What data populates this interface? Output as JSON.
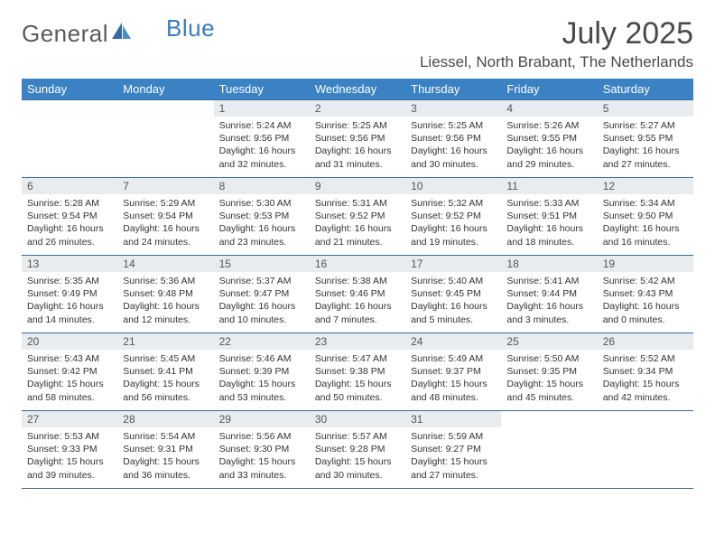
{
  "logo": {
    "part1": "General",
    "part2": "Blue"
  },
  "title": "July 2025",
  "location": "Liessel, North Brabant, The Netherlands",
  "colors": {
    "header_bg": "#3b82c4",
    "header_fg": "#ffffff",
    "daynum_bg": "#e8ecef",
    "rule": "#3b6a9a",
    "logo_gray": "#5a5a5a",
    "logo_blue": "#3b7bbf"
  },
  "weekdays": [
    "Sunday",
    "Monday",
    "Tuesday",
    "Wednesday",
    "Thursday",
    "Friday",
    "Saturday"
  ],
  "weeks": [
    [
      {
        "n": "",
        "sunrise": "",
        "sunset": "",
        "daylight": ""
      },
      {
        "n": "",
        "sunrise": "",
        "sunset": "",
        "daylight": ""
      },
      {
        "n": "1",
        "sunrise": "5:24 AM",
        "sunset": "9:56 PM",
        "daylight": "16 hours and 32 minutes."
      },
      {
        "n": "2",
        "sunrise": "5:25 AM",
        "sunset": "9:56 PM",
        "daylight": "16 hours and 31 minutes."
      },
      {
        "n": "3",
        "sunrise": "5:25 AM",
        "sunset": "9:56 PM",
        "daylight": "16 hours and 30 minutes."
      },
      {
        "n": "4",
        "sunrise": "5:26 AM",
        "sunset": "9:55 PM",
        "daylight": "16 hours and 29 minutes."
      },
      {
        "n": "5",
        "sunrise": "5:27 AM",
        "sunset": "9:55 PM",
        "daylight": "16 hours and 27 minutes."
      }
    ],
    [
      {
        "n": "6",
        "sunrise": "5:28 AM",
        "sunset": "9:54 PM",
        "daylight": "16 hours and 26 minutes."
      },
      {
        "n": "7",
        "sunrise": "5:29 AM",
        "sunset": "9:54 PM",
        "daylight": "16 hours and 24 minutes."
      },
      {
        "n": "8",
        "sunrise": "5:30 AM",
        "sunset": "9:53 PM",
        "daylight": "16 hours and 23 minutes."
      },
      {
        "n": "9",
        "sunrise": "5:31 AM",
        "sunset": "9:52 PM",
        "daylight": "16 hours and 21 minutes."
      },
      {
        "n": "10",
        "sunrise": "5:32 AM",
        "sunset": "9:52 PM",
        "daylight": "16 hours and 19 minutes."
      },
      {
        "n": "11",
        "sunrise": "5:33 AM",
        "sunset": "9:51 PM",
        "daylight": "16 hours and 18 minutes."
      },
      {
        "n": "12",
        "sunrise": "5:34 AM",
        "sunset": "9:50 PM",
        "daylight": "16 hours and 16 minutes."
      }
    ],
    [
      {
        "n": "13",
        "sunrise": "5:35 AM",
        "sunset": "9:49 PM",
        "daylight": "16 hours and 14 minutes."
      },
      {
        "n": "14",
        "sunrise": "5:36 AM",
        "sunset": "9:48 PM",
        "daylight": "16 hours and 12 minutes."
      },
      {
        "n": "15",
        "sunrise": "5:37 AM",
        "sunset": "9:47 PM",
        "daylight": "16 hours and 10 minutes."
      },
      {
        "n": "16",
        "sunrise": "5:38 AM",
        "sunset": "9:46 PM",
        "daylight": "16 hours and 7 minutes."
      },
      {
        "n": "17",
        "sunrise": "5:40 AM",
        "sunset": "9:45 PM",
        "daylight": "16 hours and 5 minutes."
      },
      {
        "n": "18",
        "sunrise": "5:41 AM",
        "sunset": "9:44 PM",
        "daylight": "16 hours and 3 minutes."
      },
      {
        "n": "19",
        "sunrise": "5:42 AM",
        "sunset": "9:43 PM",
        "daylight": "16 hours and 0 minutes."
      }
    ],
    [
      {
        "n": "20",
        "sunrise": "5:43 AM",
        "sunset": "9:42 PM",
        "daylight": "15 hours and 58 minutes."
      },
      {
        "n": "21",
        "sunrise": "5:45 AM",
        "sunset": "9:41 PM",
        "daylight": "15 hours and 56 minutes."
      },
      {
        "n": "22",
        "sunrise": "5:46 AM",
        "sunset": "9:39 PM",
        "daylight": "15 hours and 53 minutes."
      },
      {
        "n": "23",
        "sunrise": "5:47 AM",
        "sunset": "9:38 PM",
        "daylight": "15 hours and 50 minutes."
      },
      {
        "n": "24",
        "sunrise": "5:49 AM",
        "sunset": "9:37 PM",
        "daylight": "15 hours and 48 minutes."
      },
      {
        "n": "25",
        "sunrise": "5:50 AM",
        "sunset": "9:35 PM",
        "daylight": "15 hours and 45 minutes."
      },
      {
        "n": "26",
        "sunrise": "5:52 AM",
        "sunset": "9:34 PM",
        "daylight": "15 hours and 42 minutes."
      }
    ],
    [
      {
        "n": "27",
        "sunrise": "5:53 AM",
        "sunset": "9:33 PM",
        "daylight": "15 hours and 39 minutes."
      },
      {
        "n": "28",
        "sunrise": "5:54 AM",
        "sunset": "9:31 PM",
        "daylight": "15 hours and 36 minutes."
      },
      {
        "n": "29",
        "sunrise": "5:56 AM",
        "sunset": "9:30 PM",
        "daylight": "15 hours and 33 minutes."
      },
      {
        "n": "30",
        "sunrise": "5:57 AM",
        "sunset": "9:28 PM",
        "daylight": "15 hours and 30 minutes."
      },
      {
        "n": "31",
        "sunrise": "5:59 AM",
        "sunset": "9:27 PM",
        "daylight": "15 hours and 27 minutes."
      },
      {
        "n": "",
        "sunrise": "",
        "sunset": "",
        "daylight": ""
      },
      {
        "n": "",
        "sunrise": "",
        "sunset": "",
        "daylight": ""
      }
    ]
  ],
  "labels": {
    "sunrise": "Sunrise:",
    "sunset": "Sunset:",
    "daylight": "Daylight:"
  }
}
